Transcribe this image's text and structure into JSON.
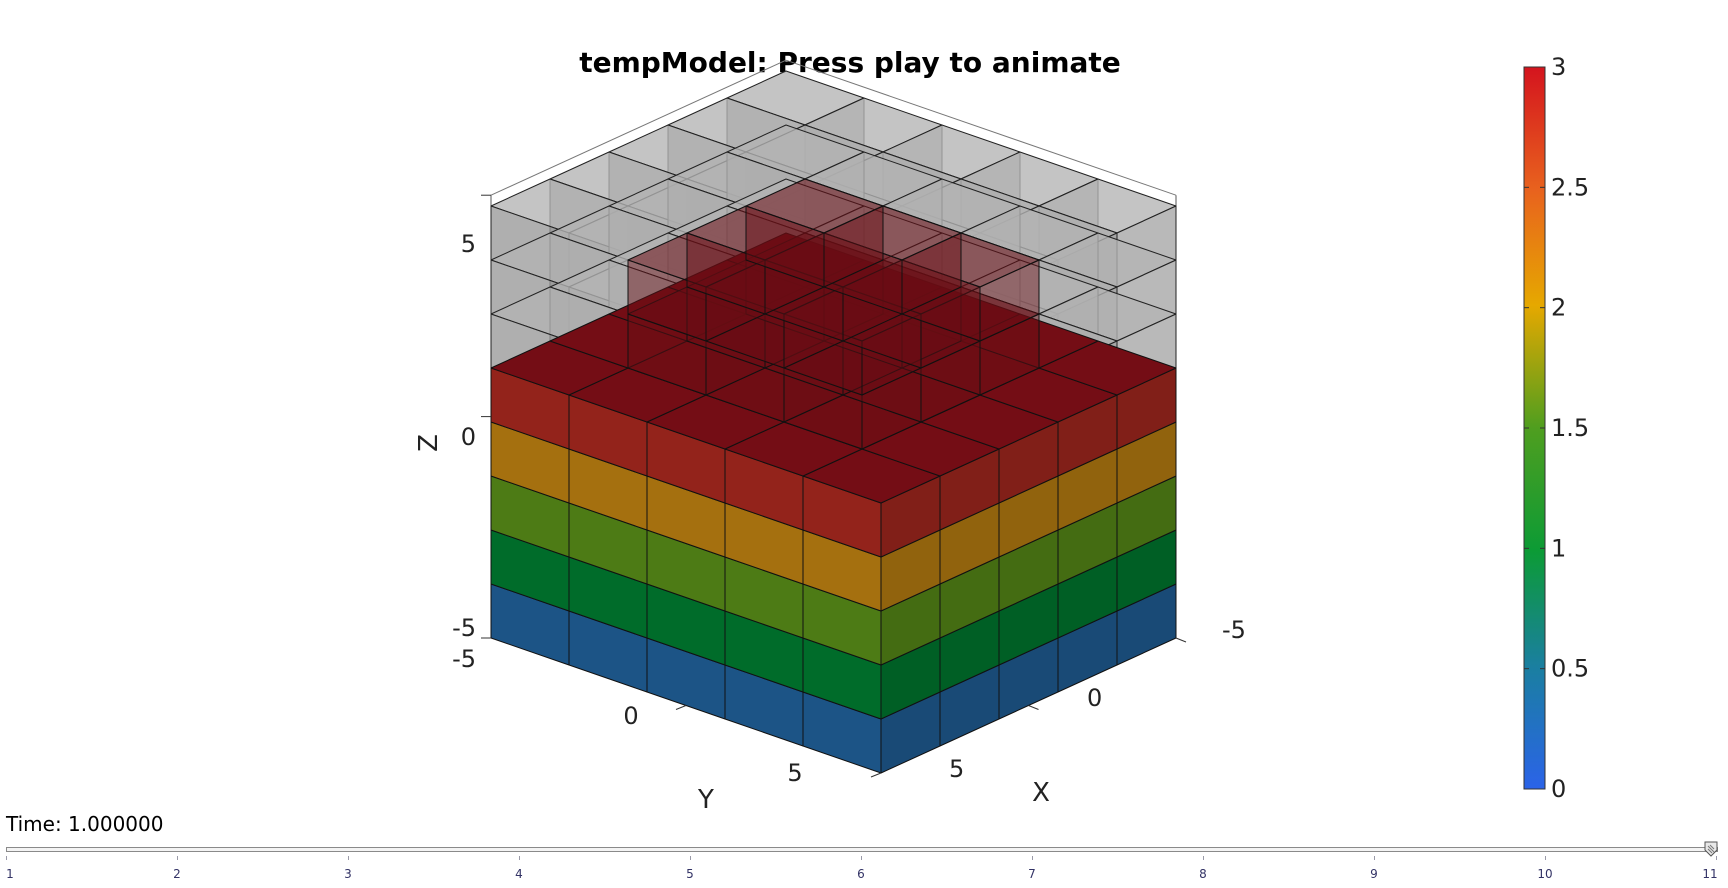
{
  "figure": {
    "title": "tempModel: Press play to animate",
    "axes": {
      "xlabel": "X",
      "ylabel": "Y",
      "zlabel": "Z",
      "x_ticks": [
        "-5",
        "0",
        "5"
      ],
      "y_ticks": [
        "-5",
        "0",
        "5"
      ],
      "z_ticks": [
        "-5",
        "0",
        "5"
      ]
    },
    "colorbar": {
      "tick_labels": [
        "0",
        "0.5",
        "1",
        "1.5",
        "2",
        "2.5",
        "3"
      ],
      "range": [
        0,
        3
      ],
      "colormap": [
        "#2b63e8",
        "#1a7fa0",
        "#0c9b35",
        "#4f9e1f",
        "#e6a800",
        "#e8621e",
        "#d4141e"
      ]
    },
    "layer_colors": {
      "layer_1_bottom": "#1c5486",
      "layer_2": "#006c2a",
      "layer_3": "#4d7b15",
      "layer_4": "#a5700f",
      "layer_5_top": "#93231b",
      "top_face": "#740d15",
      "ghost_cells": "#b3b3b3",
      "overlay": "#6a0d14"
    }
  },
  "time": {
    "label": "Time: 1.000000"
  },
  "slider": {
    "tick_labels": [
      "1",
      "2",
      "3",
      "4",
      "5",
      "6",
      "7",
      "8",
      "9",
      "10",
      "11"
    ],
    "min": 1,
    "max": 11,
    "value": 11
  }
}
